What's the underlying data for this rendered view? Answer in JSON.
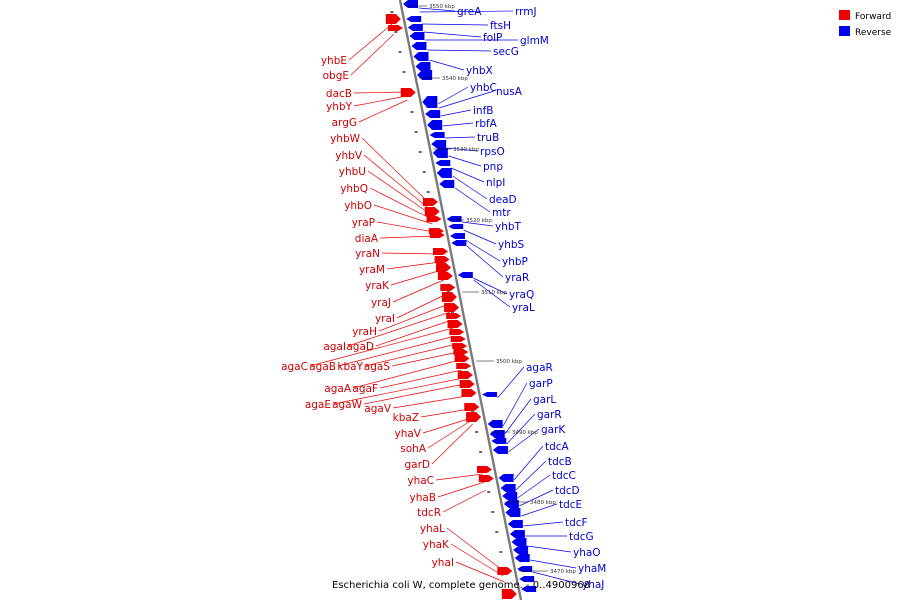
{
  "caption": "Escherichia coli W, complete genome. - 0..4900968",
  "legend": [
    {
      "label": "Forward",
      "color": "#ee0000"
    },
    {
      "label": "Reverse",
      "color": "#0000ee"
    }
  ],
  "colors": {
    "forward": "#ee0000",
    "reverse": "#0000ee",
    "backbone": "#7a7a7a"
  },
  "kbp_labels": [
    "3550 kbp",
    "3540 kbp",
    "3530 kbp",
    "3520 kbp",
    "3510 kbp",
    "3500 kbp",
    "3490 kbp",
    "3480 kbp",
    "3470 kbp"
  ],
  "forward_genes": [
    "yhbE",
    "obgE",
    "dacB",
    "yhbY",
    "argG",
    "yhbW",
    "yhbV",
    "yhbU",
    "yhbQ",
    "yhbO",
    "yraP",
    "diaA",
    "yraN",
    "yraM",
    "yraK",
    "yraJ",
    "yraI",
    "yraH",
    "agaI",
    "agaD",
    "agaC",
    "agaB",
    "kbaY",
    "agaS",
    "agaA",
    "agaF",
    "agaE",
    "agaW",
    "agaV",
    "kbaZ",
    "yhaV",
    "sohA",
    "garD",
    "yhaC",
    "yhaB",
    "tdcR",
    "yhaL",
    "yhaK",
    "yhaI"
  ],
  "reverse_genes": [
    "greA",
    "rrmJ",
    "ftsH",
    "folP",
    "glmM",
    "secG",
    "yhbX",
    "yhbC",
    "nusA",
    "infB",
    "rbfA",
    "truB",
    "rpsO",
    "pnp",
    "nlpI",
    "deaD",
    "mtr",
    "yhbT",
    "yhbS",
    "yhbP",
    "yraR",
    "yraQ",
    "yraL",
    "agaR",
    "garP",
    "garL",
    "garR",
    "garK",
    "tdcA",
    "tdcB",
    "tdcC",
    "tdcD",
    "tdcE",
    "tdcF",
    "tdcG",
    "yhaO",
    "yhaM",
    "yhaJ"
  ]
}
